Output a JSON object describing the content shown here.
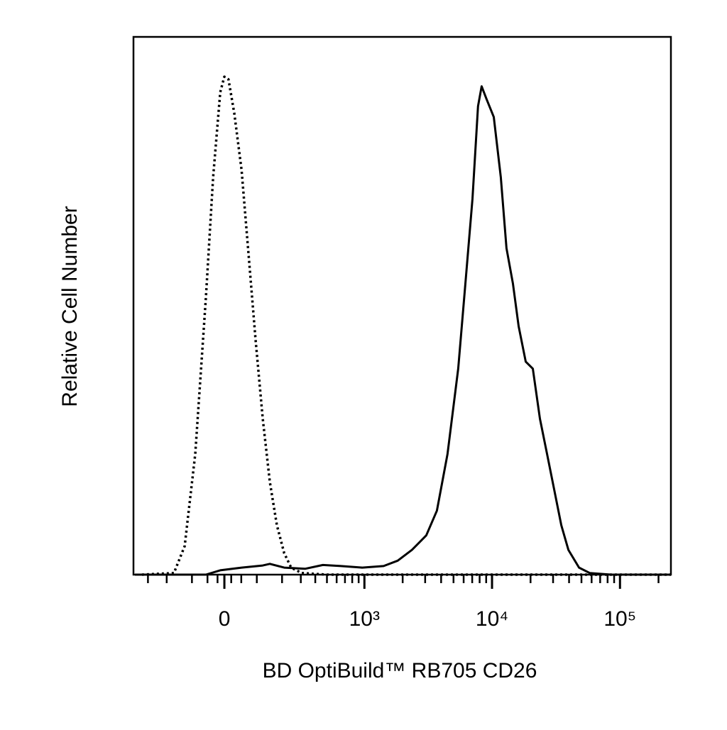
{
  "chart_data": {
    "type": "histogram-overlay",
    "x_label": "BD OptiBuild™ RB705 CD26",
    "y_label": "Relative Cell Number",
    "xscale": "arcsinh",
    "xscale_cofactor": 162,
    "xlim": [
      -400,
      250000
    ],
    "ylim": [
      0,
      100
    ],
    "xticks": [
      0,
      {
        "value": 1000,
        "label": "10³"
      },
      {
        "value": 10000,
        "label": "10⁴"
      },
      {
        "value": 100000,
        "label": "10⁵"
      }
    ],
    "xminor_ticks": [
      -300,
      -200,
      -100,
      -50,
      -20,
      20,
      50,
      100,
      200,
      300,
      400,
      500,
      600,
      700,
      800,
      900,
      2000,
      3000,
      4000,
      5000,
      6000,
      7000,
      8000,
      9000,
      20000,
      30000,
      40000,
      50000,
      60000,
      70000,
      80000,
      90000,
      200000
    ],
    "series": [
      {
        "color": "#000000",
        "line_style": "dotted",
        "x": [
          -339,
          -168,
          -126,
          -89,
          -55,
          -33,
          -12,
          0,
          12,
          29,
          51,
          73,
          96,
          121,
          148,
          177,
          210,
          245,
          305,
          497,
          1094,
          250000
        ],
        "values": [
          0,
          0.3,
          5.3,
          22.4,
          51.5,
          73.9,
          89.7,
          92.6,
          92.1,
          85.8,
          75.2,
          59.4,
          43.5,
          29.0,
          17.2,
          9.2,
          4.0,
          1.3,
          0.3,
          0,
          0,
          0
        ]
      },
      {
        "color": "#000000",
        "line_style": "solid",
        "x": [
          -389,
          -55,
          -12,
          51,
          121,
          148,
          210,
          329,
          463,
          650,
          961,
          1416,
          1830,
          2365,
          3062,
          3710,
          4487,
          5443,
          6188,
          7031,
          7776,
          8294,
          9072,
          10319,
          11713,
          12976,
          14564,
          16135,
          18338,
          20849,
          23684,
          26924,
          30602,
          34781,
          39528,
          47887,
          57996,
          85131,
          250000
        ],
        "values": [
          0,
          0,
          0.8,
          1.3,
          1.7,
          2.0,
          1.3,
          1.1,
          1.8,
          1.6,
          1.3,
          1.6,
          2.6,
          4.6,
          7.3,
          11.9,
          22.4,
          38.3,
          54.1,
          69.9,
          87.1,
          90.8,
          88.4,
          85.1,
          73.9,
          60.7,
          54.1,
          46.2,
          39.6,
          38.3,
          29.0,
          22.4,
          15.8,
          9.2,
          4.6,
          1.3,
          0.3,
          0,
          0
        ]
      }
    ]
  }
}
